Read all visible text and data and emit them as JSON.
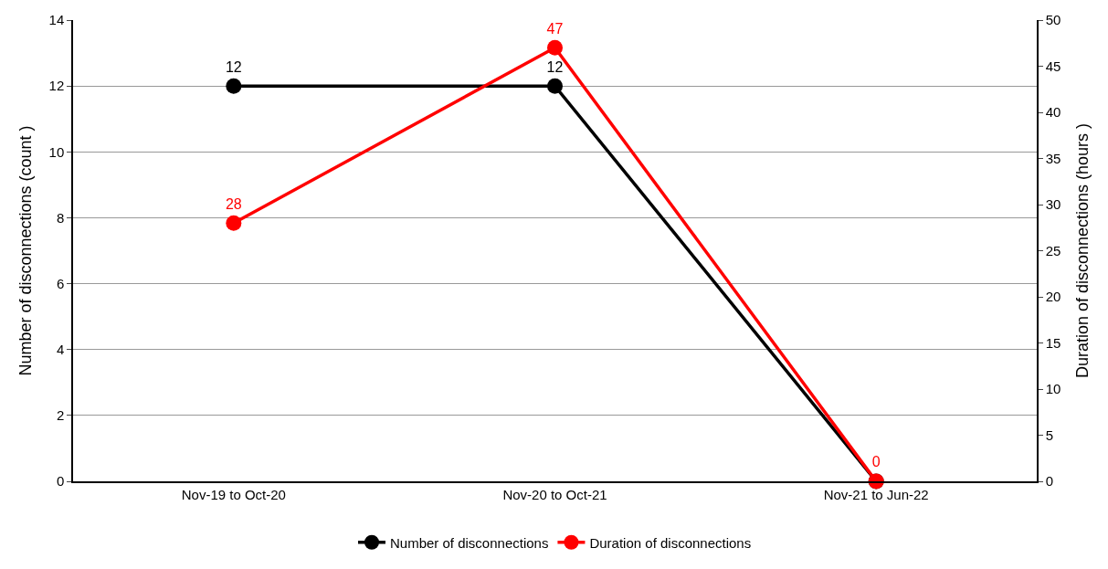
{
  "chart_data": {
    "type": "line",
    "ylabel": "Number of disconnections (count )",
    "y2label": "Duration of disconnections (hours )",
    "categories": [
      "Nov-19 to Oct-20",
      "Nov-20 to Oct-21",
      "Nov-21 to Jun-22"
    ],
    "series": [
      {
        "name": "Number of disconnections",
        "color": "#000000",
        "values": [
          12,
          12,
          0
        ],
        "value_labels": [
          "12",
          "12",
          null
        ]
      },
      {
        "name": "Duration of disconnections",
        "color": "#ff0000",
        "values": [
          28,
          47,
          0
        ],
        "axis": "y2",
        "value_labels": [
          "28",
          "47",
          "0"
        ]
      }
    ],
    "ylim": [
      0,
      14
    ],
    "yticks": [
      0,
      2,
      4,
      6,
      8,
      10,
      12,
      14
    ],
    "y2lim": [
      0,
      50
    ],
    "y2ticks": [
      0,
      5,
      10,
      15,
      20,
      25,
      30,
      35,
      40,
      45,
      50
    ],
    "grid": "y",
    "legend": "bottom",
    "marker": "circle",
    "line_style": "solid"
  }
}
